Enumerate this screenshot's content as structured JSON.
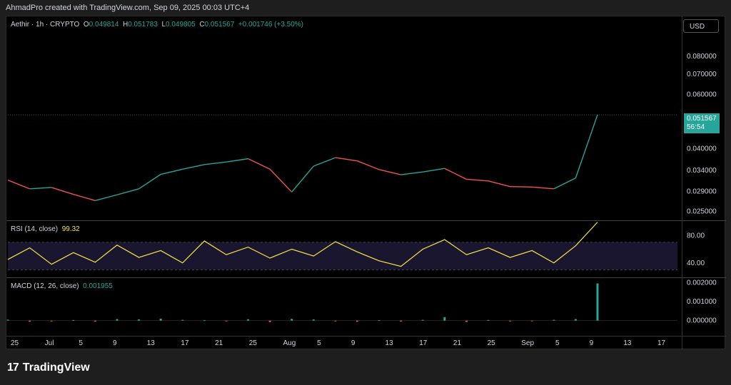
{
  "header": "AhmadPro created with TradingView.com, Sep 09, 2025 00:03 UTC+4",
  "brand": "TradingView",
  "currency": "USD",
  "symbol": "Aethir · 1h · CRYPTO",
  "ohlc": {
    "o_label": "O",
    "o": "0.049814",
    "h_label": "H",
    "h": "0.051783",
    "l_label": "L",
    "l": "0.049805",
    "c_label": "C",
    "c": "0.051567",
    "change": "+0.001746 (+3.50%)"
  },
  "last_price": "0.051567",
  "countdown": "56:54",
  "rsi_label": "RSI (14, close)",
  "rsi_value": "99.32",
  "macd_label": "MACD (12, 26, close)",
  "macd_value": "0.001955",
  "colors": {
    "up": "#26a69a",
    "down": "#ef5350",
    "rsi": "#f5e642",
    "macd_pos": "#26a69a",
    "macd_neg": "#ef5350",
    "band": "#1a1630"
  },
  "chart_data": [
    {
      "type": "line",
      "title": "Aethir · 1h · CRYPTO",
      "ylim": [
        0.0235,
        0.098
      ],
      "y_scale": "log",
      "y_ticks": [
        0.08,
        0.07,
        0.06,
        0.04,
        0.034,
        0.029,
        0.025
      ],
      "y_tick_labels": [
        "0.080000",
        "0.070000",
        "0.060000",
        "0.040000",
        "0.034000",
        "0.029000",
        "0.025000"
      ],
      "x": [
        "2025-06-25",
        "2025-06-28",
        "2025-07-01",
        "2025-07-04",
        "2025-07-07",
        "2025-07-10",
        "2025-07-13",
        "2025-07-16",
        "2025-07-19",
        "2025-07-22",
        "2025-07-25",
        "2025-07-28",
        "2025-07-31",
        "2025-08-02",
        "2025-08-05",
        "2025-08-08",
        "2025-08-11",
        "2025-08-14",
        "2025-08-17",
        "2025-08-20",
        "2025-08-23",
        "2025-08-26",
        "2025-08-29",
        "2025-09-01",
        "2025-09-04",
        "2025-09-07",
        "2025-09-08",
        "2025-09-09"
      ],
      "values": [
        0.0316,
        0.0296,
        0.0299,
        0.0284,
        0.0271,
        0.0283,
        0.0296,
        0.033,
        0.0343,
        0.0355,
        0.0362,
        0.0371,
        0.0343,
        0.0289,
        0.0351,
        0.0374,
        0.0365,
        0.0342,
        0.0329,
        0.0336,
        0.0345,
        0.0318,
        0.0314,
        0.0301,
        0.03,
        0.0296,
        0.0321,
        0.051567
      ],
      "x_ticks": [
        "25",
        "Jul",
        "5",
        "9",
        "13",
        "17",
        "21",
        "25",
        "Aug",
        "5",
        "9",
        "13",
        "17",
        "21",
        "25",
        "Sep",
        "5",
        "9",
        "13",
        "17"
      ],
      "last_value": 0.051567
    },
    {
      "type": "line",
      "title": "RSI (14, close)",
      "ylim": [
        20,
        100
      ],
      "y_ticks": [
        80.0,
        40.0
      ],
      "y_tick_labels": [
        "80.00",
        "40.00"
      ],
      "bands": [
        30,
        70
      ],
      "values": [
        45,
        62,
        38,
        55,
        41,
        66,
        48,
        58,
        40,
        72,
        52,
        63,
        47,
        60,
        50,
        71,
        56,
        43,
        35,
        60,
        74,
        52,
        62,
        48,
        58,
        40,
        65,
        99.32
      ],
      "last_value": 99.32
    },
    {
      "type": "bar",
      "title": "MACD (12, 26, close)",
      "ylim": [
        -0.0005,
        0.0022
      ],
      "y_ticks": [
        0.002,
        0.001,
        0.0
      ],
      "y_tick_labels": [
        "0.002000",
        "0.001000",
        "0.000000"
      ],
      "values": [
        5e-05,
        -6e-05,
        -4e-05,
        3e-05,
        -5e-05,
        8e-05,
        6e-05,
        0.0001,
        4e-05,
        2e-05,
        -3e-05,
        7e-05,
        -8e-05,
        9e-05,
        6e-05,
        -4e-05,
        -6e-05,
        2e-05,
        -5e-05,
        4e-05,
        0.00018,
        -7e-05,
        3e-05,
        -4e-05,
        -2e-05,
        4e-05,
        8e-05,
        0.001955
      ],
      "last_value": 0.001955
    }
  ]
}
